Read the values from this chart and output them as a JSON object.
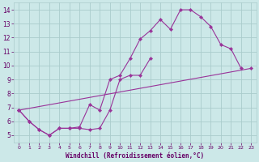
{
  "bg_color": "#cce8e8",
  "grid_color": "#aacccc",
  "line_color": "#993399",
  "marker_color": "#993399",
  "xlabel": "Windchill (Refroidissement éolien,°C)",
  "xlabel_color": "#660066",
  "tick_color": "#660066",
  "xlim": [
    -0.5,
    23.5
  ],
  "ylim": [
    4.5,
    14.5
  ],
  "yticks": [
    5,
    6,
    7,
    8,
    9,
    10,
    11,
    12,
    13,
    14
  ],
  "xticks": [
    0,
    1,
    2,
    3,
    4,
    5,
    6,
    7,
    8,
    9,
    10,
    11,
    12,
    13,
    14,
    15,
    16,
    17,
    18,
    19,
    20,
    21,
    22,
    23
  ],
  "line1_x": [
    0,
    1,
    2,
    3,
    4,
    5,
    6,
    7,
    8,
    9,
    10,
    11,
    12,
    13,
    14,
    15,
    16,
    17,
    18,
    19,
    20,
    21,
    22
  ],
  "line1_y": [
    6.8,
    6.0,
    5.4,
    5.0,
    5.5,
    5.5,
    5.6,
    7.2,
    6.8,
    9.0,
    9.3,
    10.5,
    11.9,
    12.5,
    13.3,
    12.6,
    14.0,
    14.0,
    13.5,
    12.8,
    11.5,
    11.2,
    9.8
  ],
  "line2_x": [
    0,
    1,
    2,
    3,
    4,
    5,
    6,
    7,
    8,
    9,
    10,
    11,
    12,
    13
  ],
  "line2_y": [
    6.8,
    6.0,
    5.4,
    5.0,
    5.5,
    5.5,
    5.5,
    5.4,
    5.5,
    6.8,
    9.0,
    9.3,
    9.3,
    10.5
  ],
  "line3_x": [
    0,
    23
  ],
  "line3_y": [
    6.8,
    9.8
  ]
}
